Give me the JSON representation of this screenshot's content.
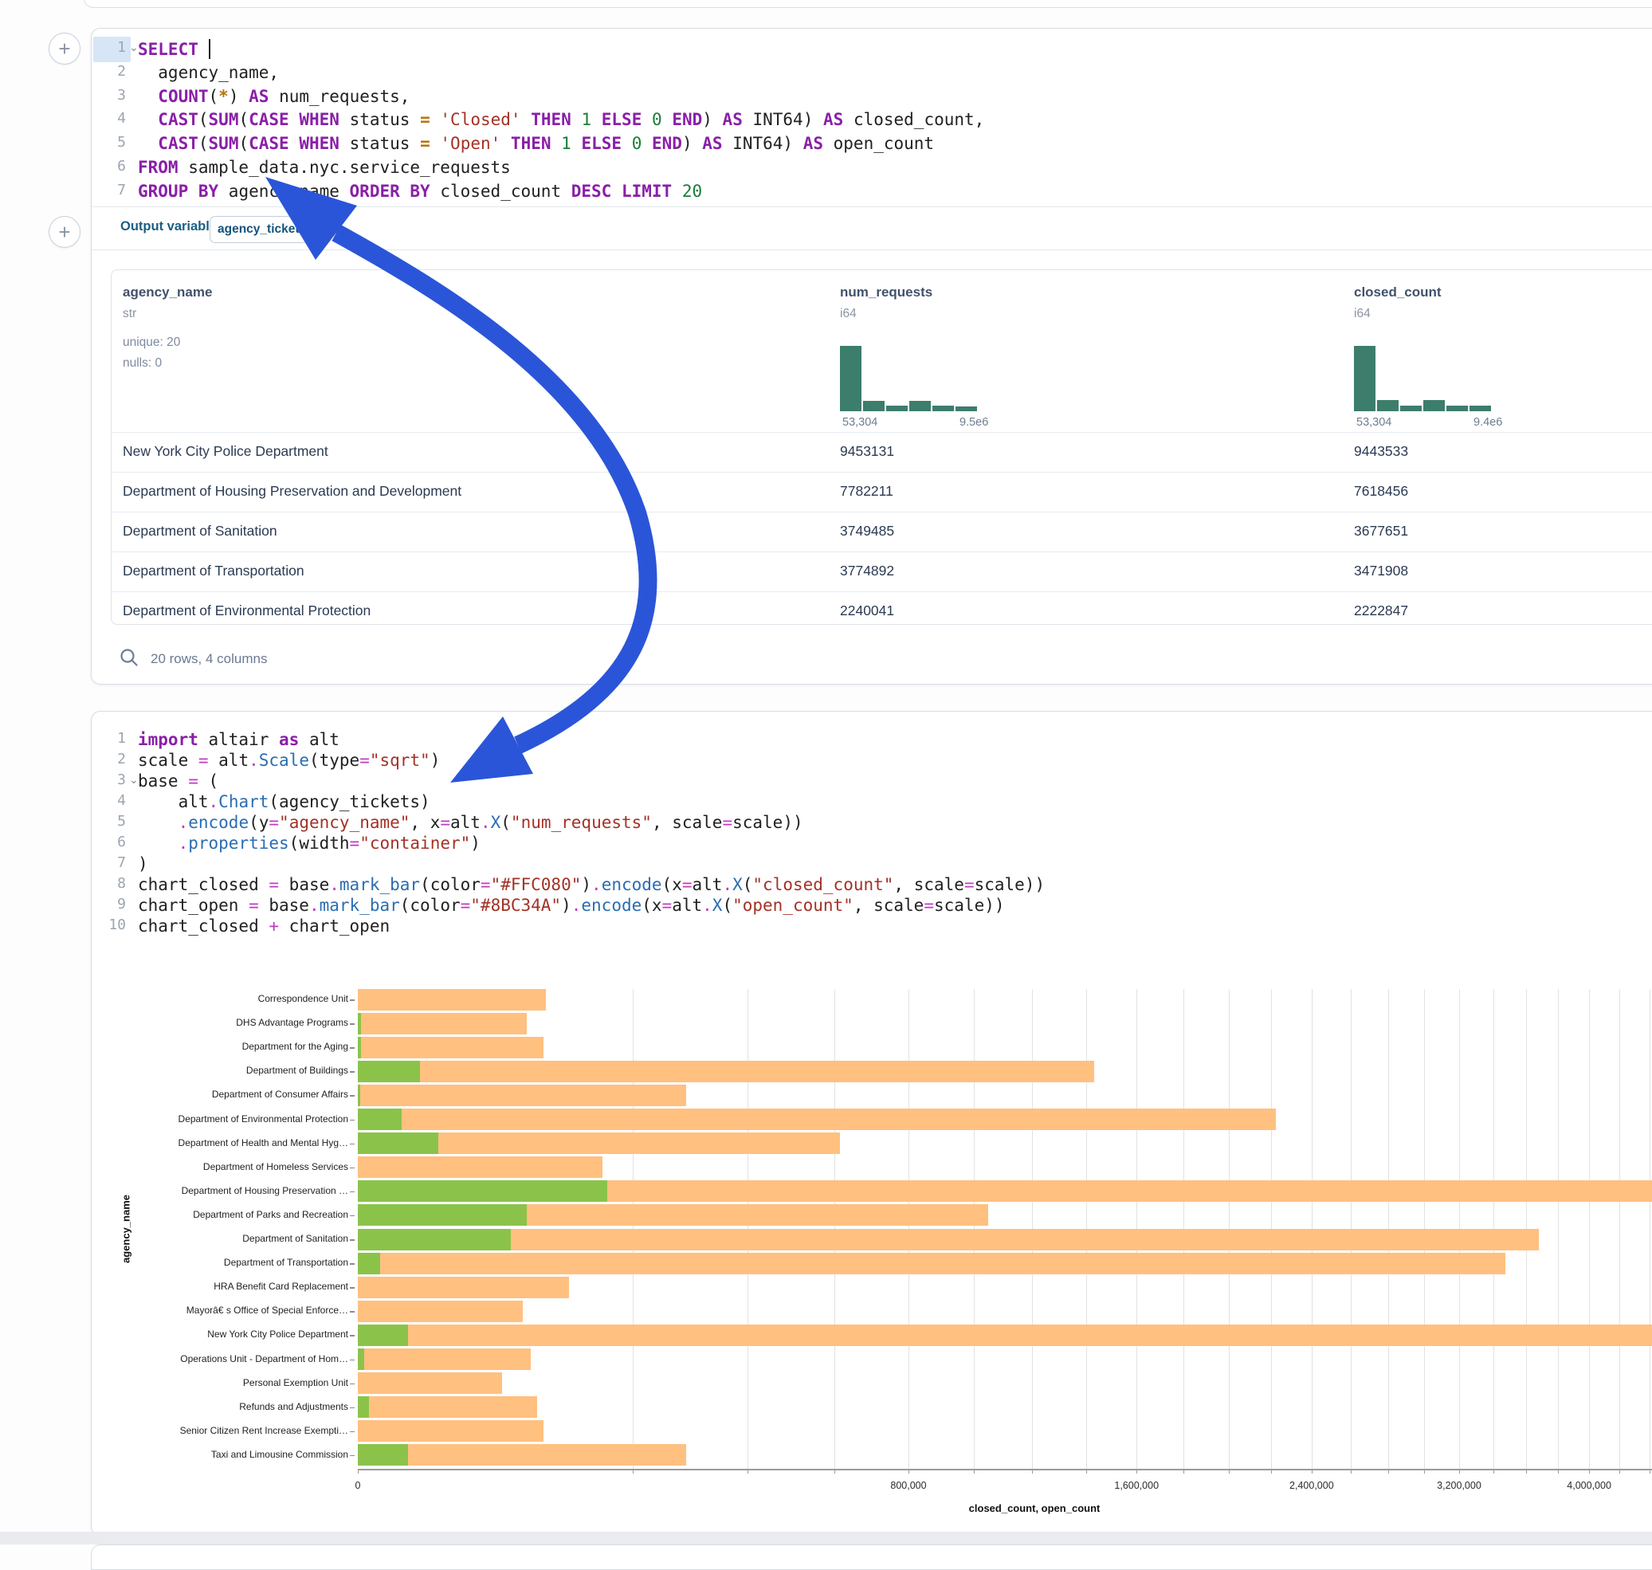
{
  "icons": {
    "plus": "+",
    "fold": "⌄",
    "search": "magnifier"
  },
  "arrow": {
    "color": "#2b55d8"
  },
  "sql_cell": {
    "lines": [
      {
        "n": "1",
        "fold": true,
        "active": true,
        "cursor": true,
        "tokens": [
          [
            "k",
            "SELECT"
          ],
          [
            "p",
            " "
          ]
        ]
      },
      {
        "n": "2",
        "tokens": [
          [
            "p",
            "  agency_name,"
          ]
        ]
      },
      {
        "n": "3",
        "tokens": [
          [
            "p",
            "  "
          ],
          [
            "k",
            "COUNT"
          ],
          [
            "p",
            "("
          ],
          [
            "o",
            "*"
          ],
          [
            "p",
            ") "
          ],
          [
            "k",
            "AS"
          ],
          [
            "p",
            " num_requests,"
          ]
        ]
      },
      {
        "n": "4",
        "tokens": [
          [
            "p",
            "  "
          ],
          [
            "k",
            "CAST"
          ],
          [
            "p",
            "("
          ],
          [
            "k",
            "SUM"
          ],
          [
            "p",
            "("
          ],
          [
            "k",
            "CASE"
          ],
          [
            "p",
            " "
          ],
          [
            "k",
            "WHEN"
          ],
          [
            "p",
            " status "
          ],
          [
            "o",
            "="
          ],
          [
            "p",
            " "
          ],
          [
            "s",
            "'Closed'"
          ],
          [
            "p",
            " "
          ],
          [
            "k",
            "THEN"
          ],
          [
            "p",
            " "
          ],
          [
            "n",
            "1"
          ],
          [
            "p",
            " "
          ],
          [
            "k",
            "ELSE"
          ],
          [
            "p",
            " "
          ],
          [
            "n",
            "0"
          ],
          [
            "p",
            " "
          ],
          [
            "k",
            "END"
          ],
          [
            "p",
            ") "
          ],
          [
            "k",
            "AS"
          ],
          [
            "p",
            " INT64) "
          ],
          [
            "k",
            "AS"
          ],
          [
            "p",
            " closed_count,"
          ]
        ]
      },
      {
        "n": "5",
        "tokens": [
          [
            "p",
            "  "
          ],
          [
            "k",
            "CAST"
          ],
          [
            "p",
            "("
          ],
          [
            "k",
            "SUM"
          ],
          [
            "p",
            "("
          ],
          [
            "k",
            "CASE"
          ],
          [
            "p",
            " "
          ],
          [
            "k",
            "WHEN"
          ],
          [
            "p",
            " status "
          ],
          [
            "o",
            "="
          ],
          [
            "p",
            " "
          ],
          [
            "s",
            "'Open'"
          ],
          [
            "p",
            " "
          ],
          [
            "k",
            "THEN"
          ],
          [
            "p",
            " "
          ],
          [
            "n",
            "1"
          ],
          [
            "p",
            " "
          ],
          [
            "k",
            "ELSE"
          ],
          [
            "p",
            " "
          ],
          [
            "n",
            "0"
          ],
          [
            "p",
            " "
          ],
          [
            "k",
            "END"
          ],
          [
            "p",
            ") "
          ],
          [
            "k",
            "AS"
          ],
          [
            "p",
            " INT64) "
          ],
          [
            "k",
            "AS"
          ],
          [
            "p",
            " open_count"
          ]
        ]
      },
      {
        "n": "6",
        "tokens": [
          [
            "k",
            "FROM"
          ],
          [
            "p",
            " sample_data.nyc.service_requests"
          ]
        ]
      },
      {
        "n": "7",
        "tokens": [
          [
            "k",
            "GROUP BY"
          ],
          [
            "p",
            " agency_name "
          ],
          [
            "k",
            "ORDER BY"
          ],
          [
            "p",
            " closed_count "
          ],
          [
            "k",
            "DESC"
          ],
          [
            "p",
            " "
          ],
          [
            "k",
            "LIMIT"
          ],
          [
            "p",
            " "
          ],
          [
            "n",
            "20"
          ]
        ]
      }
    ]
  },
  "output_bar": {
    "label": "Output variable:",
    "variable": "agency_tickets"
  },
  "table": {
    "columns": [
      {
        "name": "agency_name",
        "type": "str",
        "stats": [
          "unique: 20",
          "nulls: 0"
        ]
      },
      {
        "name": "num_requests",
        "type": "i64",
        "hist": {
          "bars": [
            1,
            0.16,
            0.08,
            0.16,
            0.08,
            0.075
          ],
          "min_label": "53,304",
          "max_label": "9.5e6"
        }
      },
      {
        "name": "closed_count",
        "type": "i64",
        "hist": {
          "bars": [
            1,
            0.17,
            0.09,
            0.17,
            0.09,
            0.09
          ],
          "min_label": "53,304",
          "max_label": "9.4e6"
        }
      }
    ],
    "hist_color": "#3c7d6c",
    "rows": [
      [
        "New York City Police Department",
        "9453131",
        "9443533"
      ],
      [
        "Department of Housing Preservation and Development",
        "7782211",
        "7618456"
      ],
      [
        "Department of Sanitation",
        "3749485",
        "3677651"
      ],
      [
        "Department of Transportation",
        "3774892",
        "3471908"
      ],
      [
        "Department of Environmental Protection",
        "2240041",
        "2222847"
      ]
    ],
    "footer": "20 rows, 4 columns"
  },
  "python_cell": {
    "lines": [
      {
        "n": "1",
        "tokens": [
          [
            "k",
            "import"
          ],
          [
            "p",
            " altair "
          ],
          [
            "k",
            "as"
          ],
          [
            "p",
            " alt"
          ]
        ]
      },
      {
        "n": "2",
        "tokens": [
          [
            "p",
            "scale "
          ],
          [
            "m",
            "="
          ],
          [
            "p",
            " alt"
          ],
          [
            "m",
            "."
          ],
          [
            "f",
            "Scale"
          ],
          [
            "p",
            "(type"
          ],
          [
            "m",
            "="
          ],
          [
            "s",
            "\"sqrt\""
          ],
          [
            "p",
            ")"
          ]
        ]
      },
      {
        "n": "3",
        "fold": true,
        "tokens": [
          [
            "p",
            "base "
          ],
          [
            "m",
            "="
          ],
          [
            "p",
            " ("
          ]
        ]
      },
      {
        "n": "4",
        "tokens": [
          [
            "p",
            "    alt"
          ],
          [
            "m",
            "."
          ],
          [
            "f",
            "Chart"
          ],
          [
            "p",
            "(agency_tickets)"
          ]
        ]
      },
      {
        "n": "5",
        "tokens": [
          [
            "p",
            "    "
          ],
          [
            "m",
            "."
          ],
          [
            "f",
            "encode"
          ],
          [
            "p",
            "(y"
          ],
          [
            "m",
            "="
          ],
          [
            "s",
            "\"agency_name\""
          ],
          [
            "p",
            ", x"
          ],
          [
            "m",
            "="
          ],
          [
            "p",
            "alt"
          ],
          [
            "m",
            "."
          ],
          [
            "f",
            "X"
          ],
          [
            "p",
            "("
          ],
          [
            "s",
            "\"num_requests\""
          ],
          [
            "p",
            ", scale"
          ],
          [
            "m",
            "="
          ],
          [
            "p",
            "scale))"
          ]
        ]
      },
      {
        "n": "6",
        "tokens": [
          [
            "p",
            "    "
          ],
          [
            "m",
            "."
          ],
          [
            "f",
            "properties"
          ],
          [
            "p",
            "(width"
          ],
          [
            "m",
            "="
          ],
          [
            "s",
            "\"container\""
          ],
          [
            "p",
            ")"
          ]
        ]
      },
      {
        "n": "7",
        "tokens": [
          [
            "p",
            ")"
          ]
        ]
      },
      {
        "n": "8",
        "tokens": [
          [
            "p",
            "chart_closed "
          ],
          [
            "m",
            "="
          ],
          [
            "p",
            " base"
          ],
          [
            "m",
            "."
          ],
          [
            "f",
            "mark_bar"
          ],
          [
            "p",
            "(color"
          ],
          [
            "m",
            "="
          ],
          [
            "s",
            "\"#FFC080\""
          ],
          [
            "p",
            ")"
          ],
          [
            "m",
            "."
          ],
          [
            "f",
            "encode"
          ],
          [
            "p",
            "(x"
          ],
          [
            "m",
            "="
          ],
          [
            "p",
            "alt"
          ],
          [
            "m",
            "."
          ],
          [
            "f",
            "X"
          ],
          [
            "p",
            "("
          ],
          [
            "s",
            "\"closed_count\""
          ],
          [
            "p",
            ", scale"
          ],
          [
            "m",
            "="
          ],
          [
            "p",
            "scale))"
          ]
        ]
      },
      {
        "n": "9",
        "tokens": [
          [
            "p",
            "chart_open "
          ],
          [
            "m",
            "="
          ],
          [
            "p",
            " base"
          ],
          [
            "m",
            "."
          ],
          [
            "f",
            "mark_bar"
          ],
          [
            "p",
            "(color"
          ],
          [
            "m",
            "="
          ],
          [
            "s",
            "\"#8BC34A\""
          ],
          [
            "p",
            ")"
          ],
          [
            "m",
            "."
          ],
          [
            "f",
            "encode"
          ],
          [
            "p",
            "(x"
          ],
          [
            "m",
            "="
          ],
          [
            "p",
            "alt"
          ],
          [
            "m",
            "."
          ],
          [
            "f",
            "X"
          ],
          [
            "p",
            "("
          ],
          [
            "s",
            "\"open_count\""
          ],
          [
            "p",
            ", scale"
          ],
          [
            "m",
            "="
          ],
          [
            "p",
            "scale))"
          ]
        ]
      },
      {
        "n": "10",
        "tokens": [
          [
            "p",
            "chart_closed "
          ],
          [
            "m",
            "+"
          ],
          [
            "p",
            " chart_open"
          ]
        ]
      }
    ]
  },
  "chart_data": {
    "type": "bar",
    "orientation": "horizontal",
    "x_scale": "sqrt",
    "title": "",
    "xlabel": "closed_count, open_count",
    "ylabel": "agency_name",
    "legend": "none",
    "grid": true,
    "grid_step": 200000,
    "x_max_visible": 4400000,
    "categories": [
      "Correspondence Unit",
      "DHS Advantage Programs",
      "Department for the Aging",
      "Department of Buildings",
      "Department of Consumer Affairs",
      "Department of Environmental Protection",
      "Department of Health and Mental Hyg…",
      "Department of Homeless Services",
      "Department of Housing Preservation …",
      "Department of Parks and Recreation",
      "Department of Sanitation",
      "Department of Transportation",
      "HRA Benefit Card Replacement",
      "Mayorâ€ s Office of Special Enforce…",
      "New York City Police Department",
      "Operations Unit - Department of Hom…",
      "Personal Exemption Unit",
      "Refunds and Adjustments",
      "Senior Citizen Rent Increase Exempti…",
      "Taxi and Limousine Commission"
    ],
    "series": [
      {
        "name": "closed_count",
        "color": "#FFC080",
        "values": [
          93000,
          75000,
          91000,
          1430000,
          285000,
          2222847,
          614000,
          158000,
          7618456,
          1047000,
          3677651,
          3471908,
          118000,
          72000,
          9443533,
          79000,
          55000,
          85000,
          91000,
          285000
        ]
      },
      {
        "name": "open_count",
        "color": "#8BC34A",
        "values": [
          0,
          30,
          30,
          10300,
          20,
          5000,
          17200,
          0,
          163755,
          75000,
          62000,
          1300,
          0,
          0,
          6600,
          106,
          0,
          325,
          0,
          6600
        ]
      }
    ],
    "x_ticks": [
      {
        "v": 0,
        "label": "0"
      },
      {
        "v": 800000,
        "label": "800,000"
      },
      {
        "v": 1600000,
        "label": "1,600,000"
      },
      {
        "v": 2400000,
        "label": "2,400,000"
      },
      {
        "v": 3200000,
        "label": "3,200,000"
      },
      {
        "v": 4000000,
        "label": "4,000,000"
      }
    ]
  }
}
